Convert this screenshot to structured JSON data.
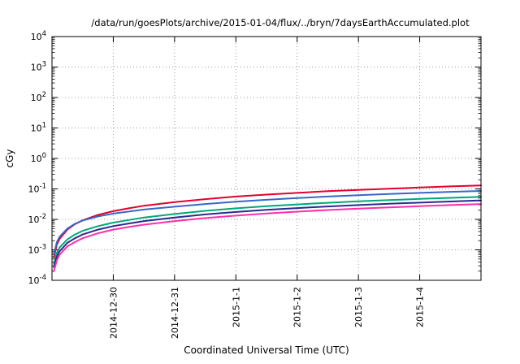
{
  "chart_data": {
    "type": "line",
    "title": "/data/run/goesPlots/archive/2015-01-04/flux/../bryn/7daysEarthAccumulated.plot",
    "xlabel": "Coordinated Universal Time (UTC)",
    "ylabel": "cGy",
    "y_scale": "log10",
    "y_log_range": [
      -4,
      4
    ],
    "y_tick_exponents": [
      4,
      3,
      2,
      1,
      0,
      -1,
      -2,
      -3,
      -4
    ],
    "x_range_days": [
      0,
      7
    ],
    "x_ticks": [
      {
        "t": 1,
        "label": "2014-12-30"
      },
      {
        "t": 2,
        "label": "2014-12-31"
      },
      {
        "t": 3,
        "label": "2015-1-1"
      },
      {
        "t": 4,
        "label": "2015-1-2"
      },
      {
        "t": 5,
        "label": "2015-1-3"
      },
      {
        "t": 6,
        "label": "2015-1-4"
      }
    ],
    "grid": true,
    "legend": "none",
    "x": [
      0.03,
      0.08,
      0.125,
      0.25,
      0.375,
      0.5,
      0.75,
      1,
      1.25,
      1.5,
      2,
      2.5,
      3,
      3.5,
      4,
      4.5,
      5,
      5.5,
      6,
      6.5,
      7
    ],
    "series": [
      {
        "name": "red",
        "color": "#e4002b",
        "values": [
          0.00056,
          0.0015,
          0.0023,
          0.0046,
          0.007,
          0.0093,
          0.014,
          0.0186,
          0.023,
          0.028,
          0.037,
          0.046,
          0.056,
          0.065,
          0.074,
          0.084,
          0.093,
          0.102,
          0.111,
          0.121,
          0.13
        ]
      },
      {
        "name": "blue",
        "color": "#3a66c8",
        "values": [
          0.0007,
          0.0018,
          0.0027,
          0.005,
          0.0072,
          0.0092,
          0.0125,
          0.0155,
          0.018,
          0.021,
          0.026,
          0.032,
          0.038,
          0.044,
          0.05,
          0.056,
          0.062,
          0.068,
          0.074,
          0.08,
          0.086
        ]
      },
      {
        "name": "teal",
        "color": "#00a878",
        "values": [
          0.00035,
          0.0008,
          0.0012,
          0.0022,
          0.0032,
          0.0042,
          0.006,
          0.0078,
          0.0095,
          0.0115,
          0.015,
          0.019,
          0.023,
          0.027,
          0.031,
          0.035,
          0.039,
          0.043,
          0.047,
          0.051,
          0.055
        ]
      },
      {
        "name": "navy",
        "color": "#2a2a8f",
        "values": [
          0.00027,
          0.0006,
          0.0009,
          0.0017,
          0.0024,
          0.0032,
          0.0046,
          0.006,
          0.0073,
          0.0088,
          0.0115,
          0.0145,
          0.0175,
          0.0205,
          0.0235,
          0.0265,
          0.0295,
          0.0325,
          0.0355,
          0.0385,
          0.042
        ]
      },
      {
        "name": "magenta",
        "color": "#ff2fa8",
        "values": [
          0.0002,
          0.00045,
          0.0007,
          0.0013,
          0.0018,
          0.0024,
          0.0035,
          0.0046,
          0.0056,
          0.0067,
          0.0088,
          0.011,
          0.0133,
          0.0156,
          0.0179,
          0.0202,
          0.0225,
          0.0248,
          0.0271,
          0.0294,
          0.032
        ]
      }
    ],
    "style": {
      "grid_color": "#9a9a9a",
      "border_color": "#000000",
      "background": "#ffffff"
    }
  }
}
